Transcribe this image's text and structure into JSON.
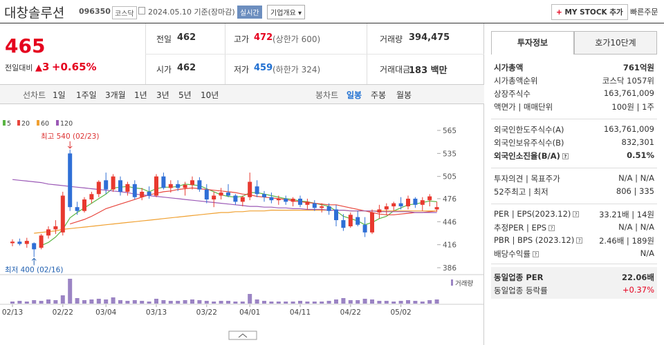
{
  "header": {
    "name": "대창솔루션",
    "code": "096350",
    "market": "코스닥",
    "date": "2024.05.10",
    "basis": "기준(장마감)",
    "realtime": "실시간",
    "overview": "기업개요",
    "mystock": "MY STOCK 추가",
    "quick_order": "빠른주문"
  },
  "price": {
    "current": 465,
    "change_label": "전일대비",
    "change": 3,
    "change_pct": "+0.65%"
  },
  "summary": {
    "rows": [
      [
        {
          "label": "전일",
          "value": 462
        },
        {
          "label": "고가",
          "value": 472,
          "note": "(상한가 600)"
        },
        {
          "label": "거래량",
          "value": "394,475"
        }
      ],
      [
        {
          "label": "시가",
          "value": 462
        },
        {
          "label": "저가",
          "value": 459,
          "note": "(하한가 324)"
        },
        {
          "label": "거래대금",
          "value": "183 백만"
        }
      ]
    ]
  },
  "toolbar": {
    "line_chart": "선차트",
    "periods": [
      "1일",
      "1주일",
      "3개월",
      "1년",
      "3년",
      "5년",
      "10년"
    ],
    "candle_chart": "봉차트",
    "candle_periods": [
      "일봉",
      "주봉",
      "월봉"
    ]
  },
  "chart_data": {
    "type": "candlestick",
    "categories": [
      "02/13",
      null,
      null,
      null,
      null,
      null,
      null,
      "02/22",
      null,
      null,
      null,
      null,
      null,
      "03/04",
      null,
      null,
      null,
      null,
      null,
      null,
      "03/13",
      null,
      null,
      null,
      null,
      null,
      null,
      "03/22",
      null,
      null,
      null,
      null,
      null,
      "04/01",
      null,
      null,
      null,
      null,
      null,
      null,
      "04/11",
      null,
      null,
      null,
      null,
      null,
      null,
      "04/22",
      null,
      null,
      null,
      null,
      null,
      null,
      "05/02",
      null,
      null,
      null,
      null,
      null
    ],
    "open": [
      418,
      420,
      417,
      418,
      412,
      428,
      436,
      432,
      535,
      465,
      460,
      475,
      482,
      500,
      488,
      500,
      485,
      495,
      478,
      485,
      480,
      505,
      490,
      495,
      490,
      494,
      500,
      488,
      475,
      480,
      484,
      480,
      472,
      478,
      492,
      482,
      478,
      474,
      476,
      472,
      476,
      468,
      470,
      464,
      466,
      462,
      448,
      440,
      452,
      442,
      432,
      458,
      462,
      466,
      470,
      466,
      476,
      468,
      474,
      462
    ],
    "high": [
      423,
      424,
      425,
      419,
      430,
      440,
      448,
      485,
      540,
      472,
      478,
      485,
      500,
      510,
      508,
      505,
      498,
      500,
      490,
      492,
      508,
      510,
      500,
      500,
      498,
      505,
      504,
      495,
      485,
      490,
      495,
      482,
      480,
      510,
      500,
      486,
      484,
      480,
      480,
      478,
      480,
      476,
      474,
      470,
      470,
      468,
      456,
      458,
      460,
      452,
      462,
      468,
      470,
      472,
      478,
      480,
      478,
      478,
      482,
      472
    ],
    "low": [
      414,
      415,
      412,
      400,
      410,
      424,
      430,
      428,
      460,
      455,
      458,
      470,
      478,
      482,
      485,
      480,
      480,
      475,
      474,
      476,
      478,
      488,
      484,
      486,
      480,
      488,
      485,
      470,
      465,
      475,
      478,
      468,
      466,
      474,
      478,
      472,
      470,
      468,
      468,
      466,
      465,
      462,
      460,
      458,
      455,
      440,
      434,
      438,
      440,
      426,
      430,
      450,
      455,
      460,
      462,
      462,
      464,
      460,
      466,
      459
    ],
    "close": [
      420,
      417,
      421,
      410,
      428,
      436,
      440,
      480,
      465,
      460,
      475,
      482,
      498,
      488,
      505,
      485,
      495,
      478,
      485,
      480,
      505,
      490,
      495,
      490,
      494,
      500,
      488,
      475,
      480,
      484,
      480,
      472,
      478,
      498,
      482,
      478,
      474,
      476,
      472,
      476,
      468,
      472,
      464,
      466,
      460,
      448,
      438,
      455,
      442,
      432,
      458,
      462,
      466,
      470,
      466,
      476,
      468,
      474,
      479,
      465
    ],
    "up_color": "#e8392f",
    "down_color": "#2f6fd6",
    "ylim": [
      386,
      565
    ],
    "yticks": [
      386,
      416,
      446,
      476,
      505,
      535,
      565
    ],
    "series": [
      {
        "name": "5",
        "color": "#5ab543",
        "values": [
          null,
          null,
          null,
          null,
          415,
          419,
          426,
          436,
          451,
          458,
          464,
          470,
          476,
          482,
          490,
          491,
          492,
          490,
          489,
          485,
          489,
          491,
          491,
          492,
          495,
          494,
          493,
          489,
          485,
          481,
          479,
          478,
          479,
          484,
          484,
          482,
          480,
          478,
          476,
          475,
          473,
          472,
          470,
          468,
          466,
          460,
          453,
          450,
          447,
          442,
          445,
          450,
          453,
          460,
          464,
          468,
          469,
          471,
          473,
          472
        ]
      },
      {
        "name": "20",
        "color": "#e8453c",
        "values": [
          null,
          null,
          null,
          null,
          null,
          null,
          null,
          null,
          443,
          446,
          449,
          453,
          458,
          463,
          466,
          469,
          472,
          475,
          478,
          481,
          483,
          485,
          486,
          488,
          489,
          490,
          489,
          488,
          487,
          486,
          485,
          484,
          482,
          481,
          479,
          478,
          477,
          476,
          475,
          473,
          472,
          471,
          470,
          469,
          468,
          468,
          466,
          464,
          462,
          460,
          458,
          456,
          455,
          455,
          456,
          457,
          458,
          458,
          459,
          460
        ]
      },
      {
        "name": "60",
        "color": "#f0a030",
        "values": [
          null,
          null,
          null,
          431,
          432,
          433,
          434,
          436,
          437,
          438,
          439,
          440,
          441,
          442,
          443,
          444,
          445,
          446,
          447,
          448,
          449,
          450,
          451,
          452,
          453,
          454,
          455,
          456,
          457,
          458,
          458,
          459,
          459,
          460,
          460,
          460,
          461,
          461,
          461,
          461,
          461,
          461,
          461,
          461,
          461,
          461,
          461,
          460,
          460,
          460,
          460,
          460,
          460,
          460,
          460,
          460,
          460,
          460,
          460,
          460
        ]
      },
      {
        "name": "120",
        "color": "#9b59b6",
        "values": [
          501,
          500,
          499,
          498,
          497,
          495,
          494,
          493,
          492,
          491,
          490,
          489,
          488,
          487,
          486,
          485,
          484,
          482,
          481,
          480,
          479,
          478,
          477,
          476,
          475,
          474,
          473,
          472,
          471,
          470,
          469,
          468,
          467,
          466,
          466,
          465,
          465,
          464,
          464,
          463,
          463,
          462,
          462,
          462,
          461,
          461,
          461,
          460,
          460,
          460,
          460,
          459,
          459,
          459,
          459,
          459,
          458,
          458,
          458,
          458
        ]
      }
    ],
    "volume": {
      "name": "거래량",
      "color": "#9b84c4",
      "ylim": [
        0,
        40
      ],
      "values": [
        3,
        4,
        3,
        5,
        4,
        6,
        5,
        12,
        36,
        8,
        5,
        6,
        7,
        6,
        9,
        5,
        4,
        5,
        4,
        3,
        7,
        5,
        4,
        4,
        5,
        6,
        5,
        4,
        3,
        4,
        4,
        3,
        3,
        14,
        6,
        4,
        3,
        3,
        3,
        3,
        4,
        3,
        3,
        3,
        4,
        6,
        8,
        5,
        5,
        7,
        6,
        4,
        4,
        3,
        4,
        5,
        4,
        3,
        5,
        6
      ]
    },
    "annotations": {
      "high": "최고 540 (02/23)",
      "low": "최저 400 (02/16)"
    }
  },
  "invest": {
    "tabs": [
      "투자정보",
      "호가10단계"
    ],
    "rows": [
      {
        "label": "시가총액",
        "value": "761억원"
      },
      {
        "label": "시가총액순위",
        "value": "코스닥 1057위"
      },
      {
        "label": "상장주식수",
        "value": "163,761,009"
      },
      {
        "label": "액면가 | 매매단위",
        "value": "100원 | 1주"
      },
      {
        "label": "외국인한도주식수(A)",
        "value": "163,761,009"
      },
      {
        "label": "외국인보유주식수(B)",
        "value": "832,301"
      },
      {
        "label": "외국인소진율(B/A)",
        "value": "0.51%"
      },
      {
        "label": "투자의견 | 목표주가",
        "value": "N/A | N/A"
      },
      {
        "label": "52주최고 | 최저",
        "value": "806 | 335"
      },
      {
        "label": "PER | EPS(2023.12)",
        "value": "33.21배 | 14원"
      },
      {
        "label": "추정PER | EPS",
        "value": "N/A | N/A"
      },
      {
        "label": "PBR | BPS (2023.12)",
        "value": "2.46배 | 189원"
      },
      {
        "label": "배당수익률",
        "value": "N/A"
      },
      {
        "label": "동일업종 PER",
        "value": "22.06배"
      },
      {
        "label": "동일업종 등락률",
        "value": "+0.37%"
      }
    ]
  }
}
